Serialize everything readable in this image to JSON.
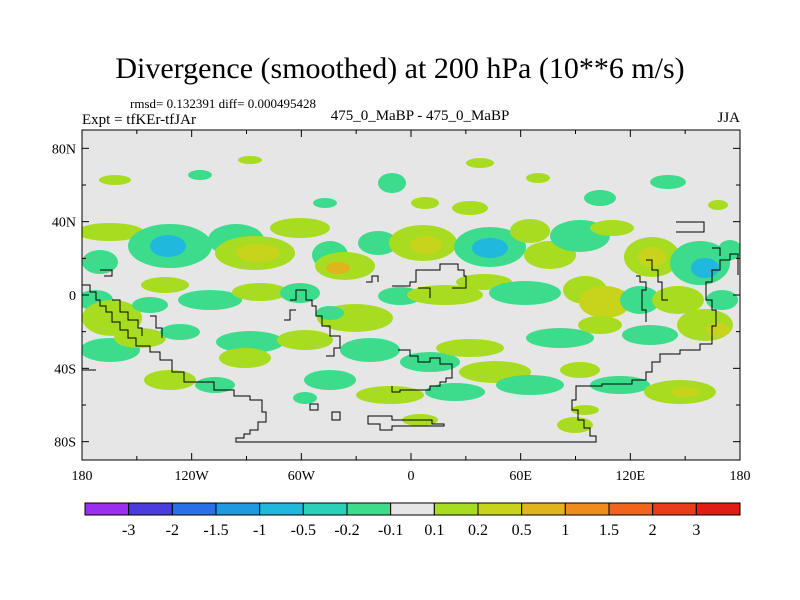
{
  "header": {
    "title": "Divergence (smoothed) at 200 hPa (10**6 m/s)",
    "stats": "rmsd= 0.132391 diff= 0.000495428",
    "experiment": "Expt = tfKEr-tfJAr",
    "center_label": "475_0_MaBP - 475_0_MaBP",
    "season": "JJA"
  },
  "chart_data": {
    "type": "heatmap",
    "title": "Divergence (smoothed) at 200 hPa (10**6 m/s)",
    "x_axis": {
      "ticks": [
        -180,
        -120,
        -60,
        0,
        60,
        120,
        180
      ],
      "tick_labels": [
        "180",
        "120W",
        "60W",
        "0",
        "60E",
        "120E",
        "180"
      ],
      "range": [
        -180,
        180
      ]
    },
    "y_axis": {
      "ticks": [
        80,
        40,
        0,
        -40,
        -80
      ],
      "tick_labels": [
        "80N",
        "40N",
        "0",
        "40S",
        "80S"
      ],
      "range": [
        -90,
        90
      ]
    },
    "colorbar": {
      "levels": [
        "-3",
        "-2",
        "-1.5",
        "-1",
        "-0.5",
        "-0.2",
        "-0.1",
        "0.1",
        "0.2",
        "0.5",
        "1",
        "1.5",
        "2",
        "3"
      ],
      "colors": [
        "#9b2ff0",
        "#4b3ce0",
        "#2a6ee8",
        "#1e9ae0",
        "#20b8dc",
        "#2ad0b8",
        "#3cdc8c",
        "#e6e6e6",
        "#a8dc20",
        "#c8d41c",
        "#e0b41c",
        "#f08c1c",
        "#f0641c",
        "#e83c1c",
        "#e01c14"
      ]
    },
    "background_value_color": "#e6e6e6",
    "regions": [
      {
        "lon": -105,
        "lat": 28,
        "value": -0.5
      },
      {
        "lon": -130,
        "lat": 25,
        "value": -0.2
      },
      {
        "lon": -85,
        "lat": 25,
        "value": 0.2
      },
      {
        "lon": -30,
        "lat": 15,
        "value": 0.5
      },
      {
        "lon": 5,
        "lat": 25,
        "value": 0.2
      },
      {
        "lon": 45,
        "lat": 22,
        "value": -0.5
      },
      {
        "lon": 95,
        "lat": 25,
        "value": 0.2
      },
      {
        "lon": 145,
        "lat": 20,
        "value": 0.5
      },
      {
        "lon": 170,
        "lat": 15,
        "value": -0.2
      },
      {
        "lon": -60,
        "lat": 58,
        "value": 0.2
      },
      {
        "lon": 90,
        "lat": 55,
        "value": -0.2
      },
      {
        "lon": 115,
        "lat": -5,
        "value": 0.5
      },
      {
        "lon": 30,
        "lat": -22,
        "value": -0.2
      },
      {
        "lon": 5,
        "lat": -35,
        "value": 0.2
      },
      {
        "lon": -60,
        "lat": -35,
        "value": 0.2
      },
      {
        "lon": -150,
        "lat": -5,
        "value": 0.2
      },
      {
        "lon": 50,
        "lat": -48,
        "value": -0.2
      },
      {
        "lon": 120,
        "lat": -48,
        "value": 0.2
      },
      {
        "lon": 90,
        "lat": -70,
        "value": 0.2
      }
    ]
  }
}
